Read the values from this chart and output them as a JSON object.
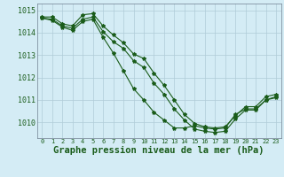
{
  "xlabel": "Graphe pression niveau de la mer (hPa)",
  "background_color": "#d4ecf5",
  "grid_color": "#b0ccd8",
  "line_color": "#1a5c1a",
  "marker": "*",
  "x": [
    0,
    1,
    2,
    3,
    4,
    5,
    6,
    7,
    8,
    9,
    10,
    11,
    12,
    13,
    14,
    15,
    16,
    17,
    18,
    19,
    20,
    21,
    22,
    23
  ],
  "lines": [
    [
      1014.7,
      1014.7,
      1014.4,
      1014.3,
      1014.8,
      1014.85,
      1014.3,
      1013.9,
      1013.55,
      1013.05,
      1012.85,
      1012.2,
      1011.65,
      1011.0,
      1010.35,
      1009.95,
      1009.8,
      1009.75,
      1009.8,
      1010.3,
      1010.7,
      1010.7,
      1011.15,
      1011.25
    ],
    [
      1014.65,
      1014.6,
      1014.3,
      1014.2,
      1014.6,
      1014.7,
      1014.05,
      1013.6,
      1013.3,
      1012.75,
      1012.45,
      1011.75,
      1011.25,
      1010.6,
      1010.1,
      1009.7,
      1009.6,
      1009.55,
      1009.6,
      1010.15,
      1010.55,
      1010.55,
      1011.0,
      1011.1
    ],
    [
      1014.65,
      1014.55,
      1014.25,
      1014.1,
      1014.5,
      1014.6,
      1013.8,
      1013.1,
      1012.3,
      1011.5,
      1011.0,
      1010.45,
      1010.1,
      1009.75,
      1009.75,
      1009.85,
      1009.75,
      1009.7,
      1009.75,
      1010.35,
      1010.6,
      1010.6,
      1011.0,
      1011.15
    ]
  ],
  "ylim": [
    1009.3,
    1015.3
  ],
  "yticks": [
    1010,
    1011,
    1012,
    1013,
    1014,
    1015
  ],
  "xlim": [
    -0.5,
    23.5
  ],
  "text_color": "#1a5c1a",
  "spine_color": "#708090",
  "tick_fontsize": 6,
  "label_fontsize": 7.5
}
